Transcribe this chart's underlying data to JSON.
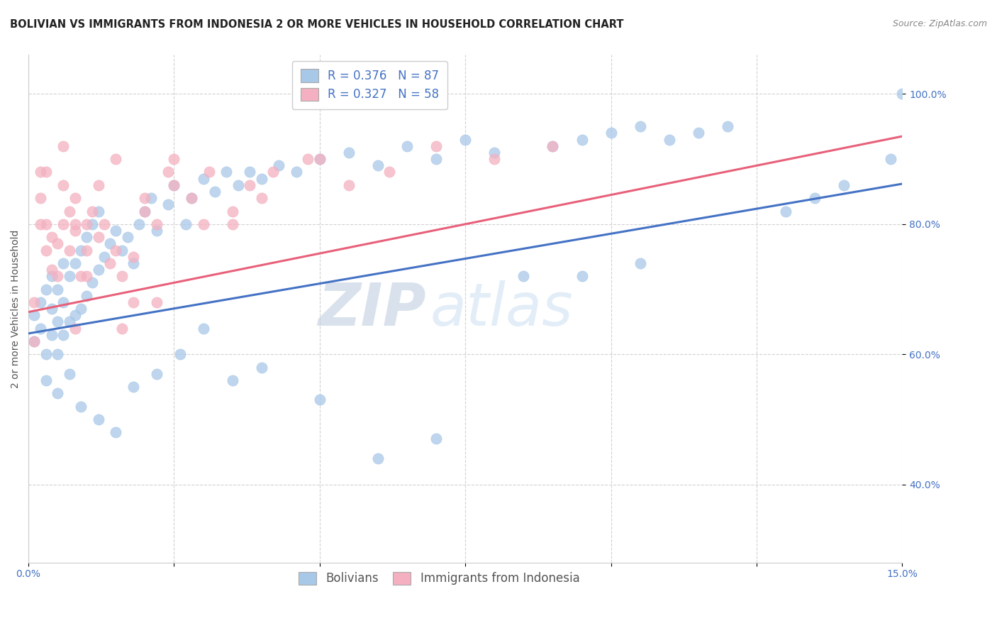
{
  "title": "BOLIVIAN VS IMMIGRANTS FROM INDONESIA 2 OR MORE VEHICLES IN HOUSEHOLD CORRELATION CHART",
  "source": "Source: ZipAtlas.com",
  "ylabel": "2 or more Vehicles in Household",
  "ytick_vals": [
    0.4,
    0.6,
    0.8,
    1.0
  ],
  "ytick_labels": [
    "40.0%",
    "60.0%",
    "80.0%",
    "100.0%"
  ],
  "xmin": 0.0,
  "xmax": 0.15,
  "ymin": 0.28,
  "ymax": 1.06,
  "blue_color": "#a8c8e8",
  "pink_color": "#f4b0c0",
  "blue_line_color": "#4472c4",
  "pink_line_color": "#e8607a",
  "R_blue": 0.376,
  "N_blue": 87,
  "R_pink": 0.327,
  "N_pink": 58,
  "legend_label_blue": "Bolivians",
  "legend_label_pink": "Immigrants from Indonesia",
  "watermark_zip": "ZIP",
  "watermark_atlas": "atlas",
  "title_fontsize": 10.5,
  "source_fontsize": 9,
  "axis_label_fontsize": 10,
  "tick_fontsize": 10,
  "legend_fontsize": 12,
  "watermark_fontsize": 60,
  "blue_line_x0": 0.0,
  "blue_line_y0": 0.632,
  "blue_line_x1": 0.15,
  "blue_line_y1": 0.862,
  "pink_line_x0": 0.0,
  "pink_line_y0": 0.665,
  "pink_line_x1": 0.15,
  "pink_line_y1": 0.935,
  "blue_scatter_x": [
    0.001,
    0.001,
    0.002,
    0.002,
    0.003,
    0.003,
    0.004,
    0.004,
    0.004,
    0.005,
    0.005,
    0.005,
    0.006,
    0.006,
    0.006,
    0.007,
    0.007,
    0.008,
    0.008,
    0.009,
    0.009,
    0.01,
    0.01,
    0.011,
    0.011,
    0.012,
    0.012,
    0.013,
    0.014,
    0.015,
    0.016,
    0.017,
    0.018,
    0.019,
    0.02,
    0.021,
    0.022,
    0.024,
    0.025,
    0.027,
    0.028,
    0.03,
    0.032,
    0.034,
    0.036,
    0.038,
    0.04,
    0.043,
    0.046,
    0.05,
    0.055,
    0.06,
    0.065,
    0.07,
    0.075,
    0.08,
    0.09,
    0.095,
    0.1,
    0.105,
    0.11,
    0.115,
    0.12,
    0.13,
    0.135,
    0.14,
    0.148,
    0.15,
    0.003,
    0.005,
    0.007,
    0.009,
    0.012,
    0.015,
    0.018,
    0.022,
    0.026,
    0.03,
    0.035,
    0.04,
    0.05,
    0.06,
    0.07,
    0.085,
    0.095,
    0.105
  ],
  "blue_scatter_y": [
    0.62,
    0.66,
    0.64,
    0.68,
    0.6,
    0.7,
    0.63,
    0.67,
    0.72,
    0.6,
    0.65,
    0.7,
    0.63,
    0.68,
    0.74,
    0.65,
    0.72,
    0.66,
    0.74,
    0.67,
    0.76,
    0.69,
    0.78,
    0.71,
    0.8,
    0.73,
    0.82,
    0.75,
    0.77,
    0.79,
    0.76,
    0.78,
    0.74,
    0.8,
    0.82,
    0.84,
    0.79,
    0.83,
    0.86,
    0.8,
    0.84,
    0.87,
    0.85,
    0.88,
    0.86,
    0.88,
    0.87,
    0.89,
    0.88,
    0.9,
    0.91,
    0.89,
    0.92,
    0.9,
    0.93,
    0.91,
    0.92,
    0.93,
    0.94,
    0.95,
    0.93,
    0.94,
    0.95,
    0.82,
    0.84,
    0.86,
    0.9,
    1.0,
    0.56,
    0.54,
    0.57,
    0.52,
    0.5,
    0.48,
    0.55,
    0.57,
    0.6,
    0.64,
    0.56,
    0.58,
    0.53,
    0.44,
    0.47,
    0.72,
    0.72,
    0.74
  ],
  "pink_scatter_x": [
    0.001,
    0.001,
    0.002,
    0.002,
    0.003,
    0.003,
    0.004,
    0.004,
    0.005,
    0.005,
    0.006,
    0.006,
    0.007,
    0.007,
    0.008,
    0.008,
    0.009,
    0.01,
    0.01,
    0.011,
    0.012,
    0.013,
    0.014,
    0.015,
    0.016,
    0.018,
    0.02,
    0.022,
    0.025,
    0.028,
    0.031,
    0.035,
    0.038,
    0.042,
    0.048,
    0.055,
    0.062,
    0.07,
    0.08,
    0.09,
    0.003,
    0.008,
    0.015,
    0.025,
    0.01,
    0.02,
    0.03,
    0.04,
    0.05,
    0.002,
    0.006,
    0.012,
    0.018,
    0.024,
    0.035,
    0.008,
    0.016,
    0.022
  ],
  "pink_scatter_y": [
    0.62,
    0.68,
    0.8,
    0.84,
    0.76,
    0.8,
    0.73,
    0.78,
    0.72,
    0.77,
    0.8,
    0.86,
    0.76,
    0.82,
    0.79,
    0.84,
    0.72,
    0.76,
    0.8,
    0.82,
    0.78,
    0.8,
    0.74,
    0.76,
    0.72,
    0.75,
    0.82,
    0.8,
    0.86,
    0.84,
    0.88,
    0.82,
    0.86,
    0.88,
    0.9,
    0.86,
    0.88,
    0.92,
    0.9,
    0.92,
    0.88,
    0.8,
    0.9,
    0.9,
    0.72,
    0.84,
    0.8,
    0.84,
    0.9,
    0.88,
    0.92,
    0.86,
    0.68,
    0.88,
    0.8,
    0.64,
    0.64,
    0.68
  ]
}
